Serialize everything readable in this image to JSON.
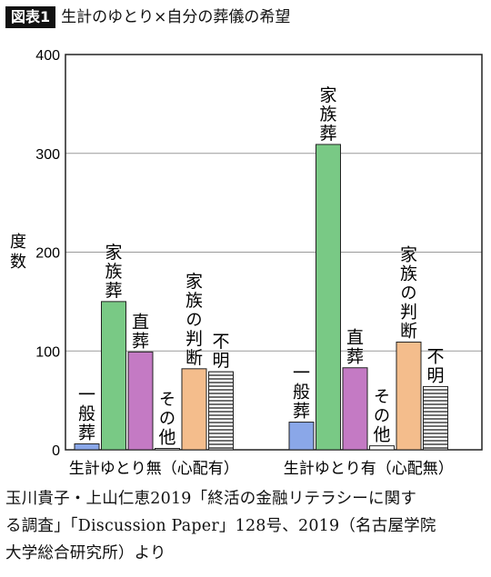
{
  "figure": {
    "tag": "図表1",
    "title": "生計のゆとり×自分の葬儀の希望"
  },
  "colors": {
    "ippan": "#8aa7e8",
    "kazoku": "#79c985",
    "chokuso": "#c47ac4",
    "sonota": "#ffffff",
    "kazoku_handan": "#f4bd8c",
    "fumei": "hatch"
  },
  "chart_data": {
    "type": "bar",
    "ylabel": "度数",
    "ylim": [
      0,
      400
    ],
    "yticks": [
      "0",
      "100",
      "200",
      "300",
      "400"
    ],
    "grid": true,
    "categories": [
      "生計ゆとり無（心配有）",
      "生計ゆとり有（心配無）"
    ],
    "series": [
      {
        "name": "一般葬",
        "values": [
          6,
          28
        ]
      },
      {
        "name": "家族葬",
        "values": [
          150,
          309
        ]
      },
      {
        "name": "直葬",
        "values": [
          99,
          83
        ]
      },
      {
        "name": "その他",
        "values": [
          1,
          4
        ]
      },
      {
        "name": "家族の判断",
        "values": [
          82,
          109
        ]
      },
      {
        "name": "不明",
        "values": [
          79,
          64
        ]
      }
    ]
  },
  "source": {
    "lines": [
      "玉川貴子・上山仁恵2019「終活の金融リテラシーに関す",
      "る調査」「Discussion Paper」128号、2019（名古屋学院",
      "大学総合研究所）より"
    ]
  }
}
